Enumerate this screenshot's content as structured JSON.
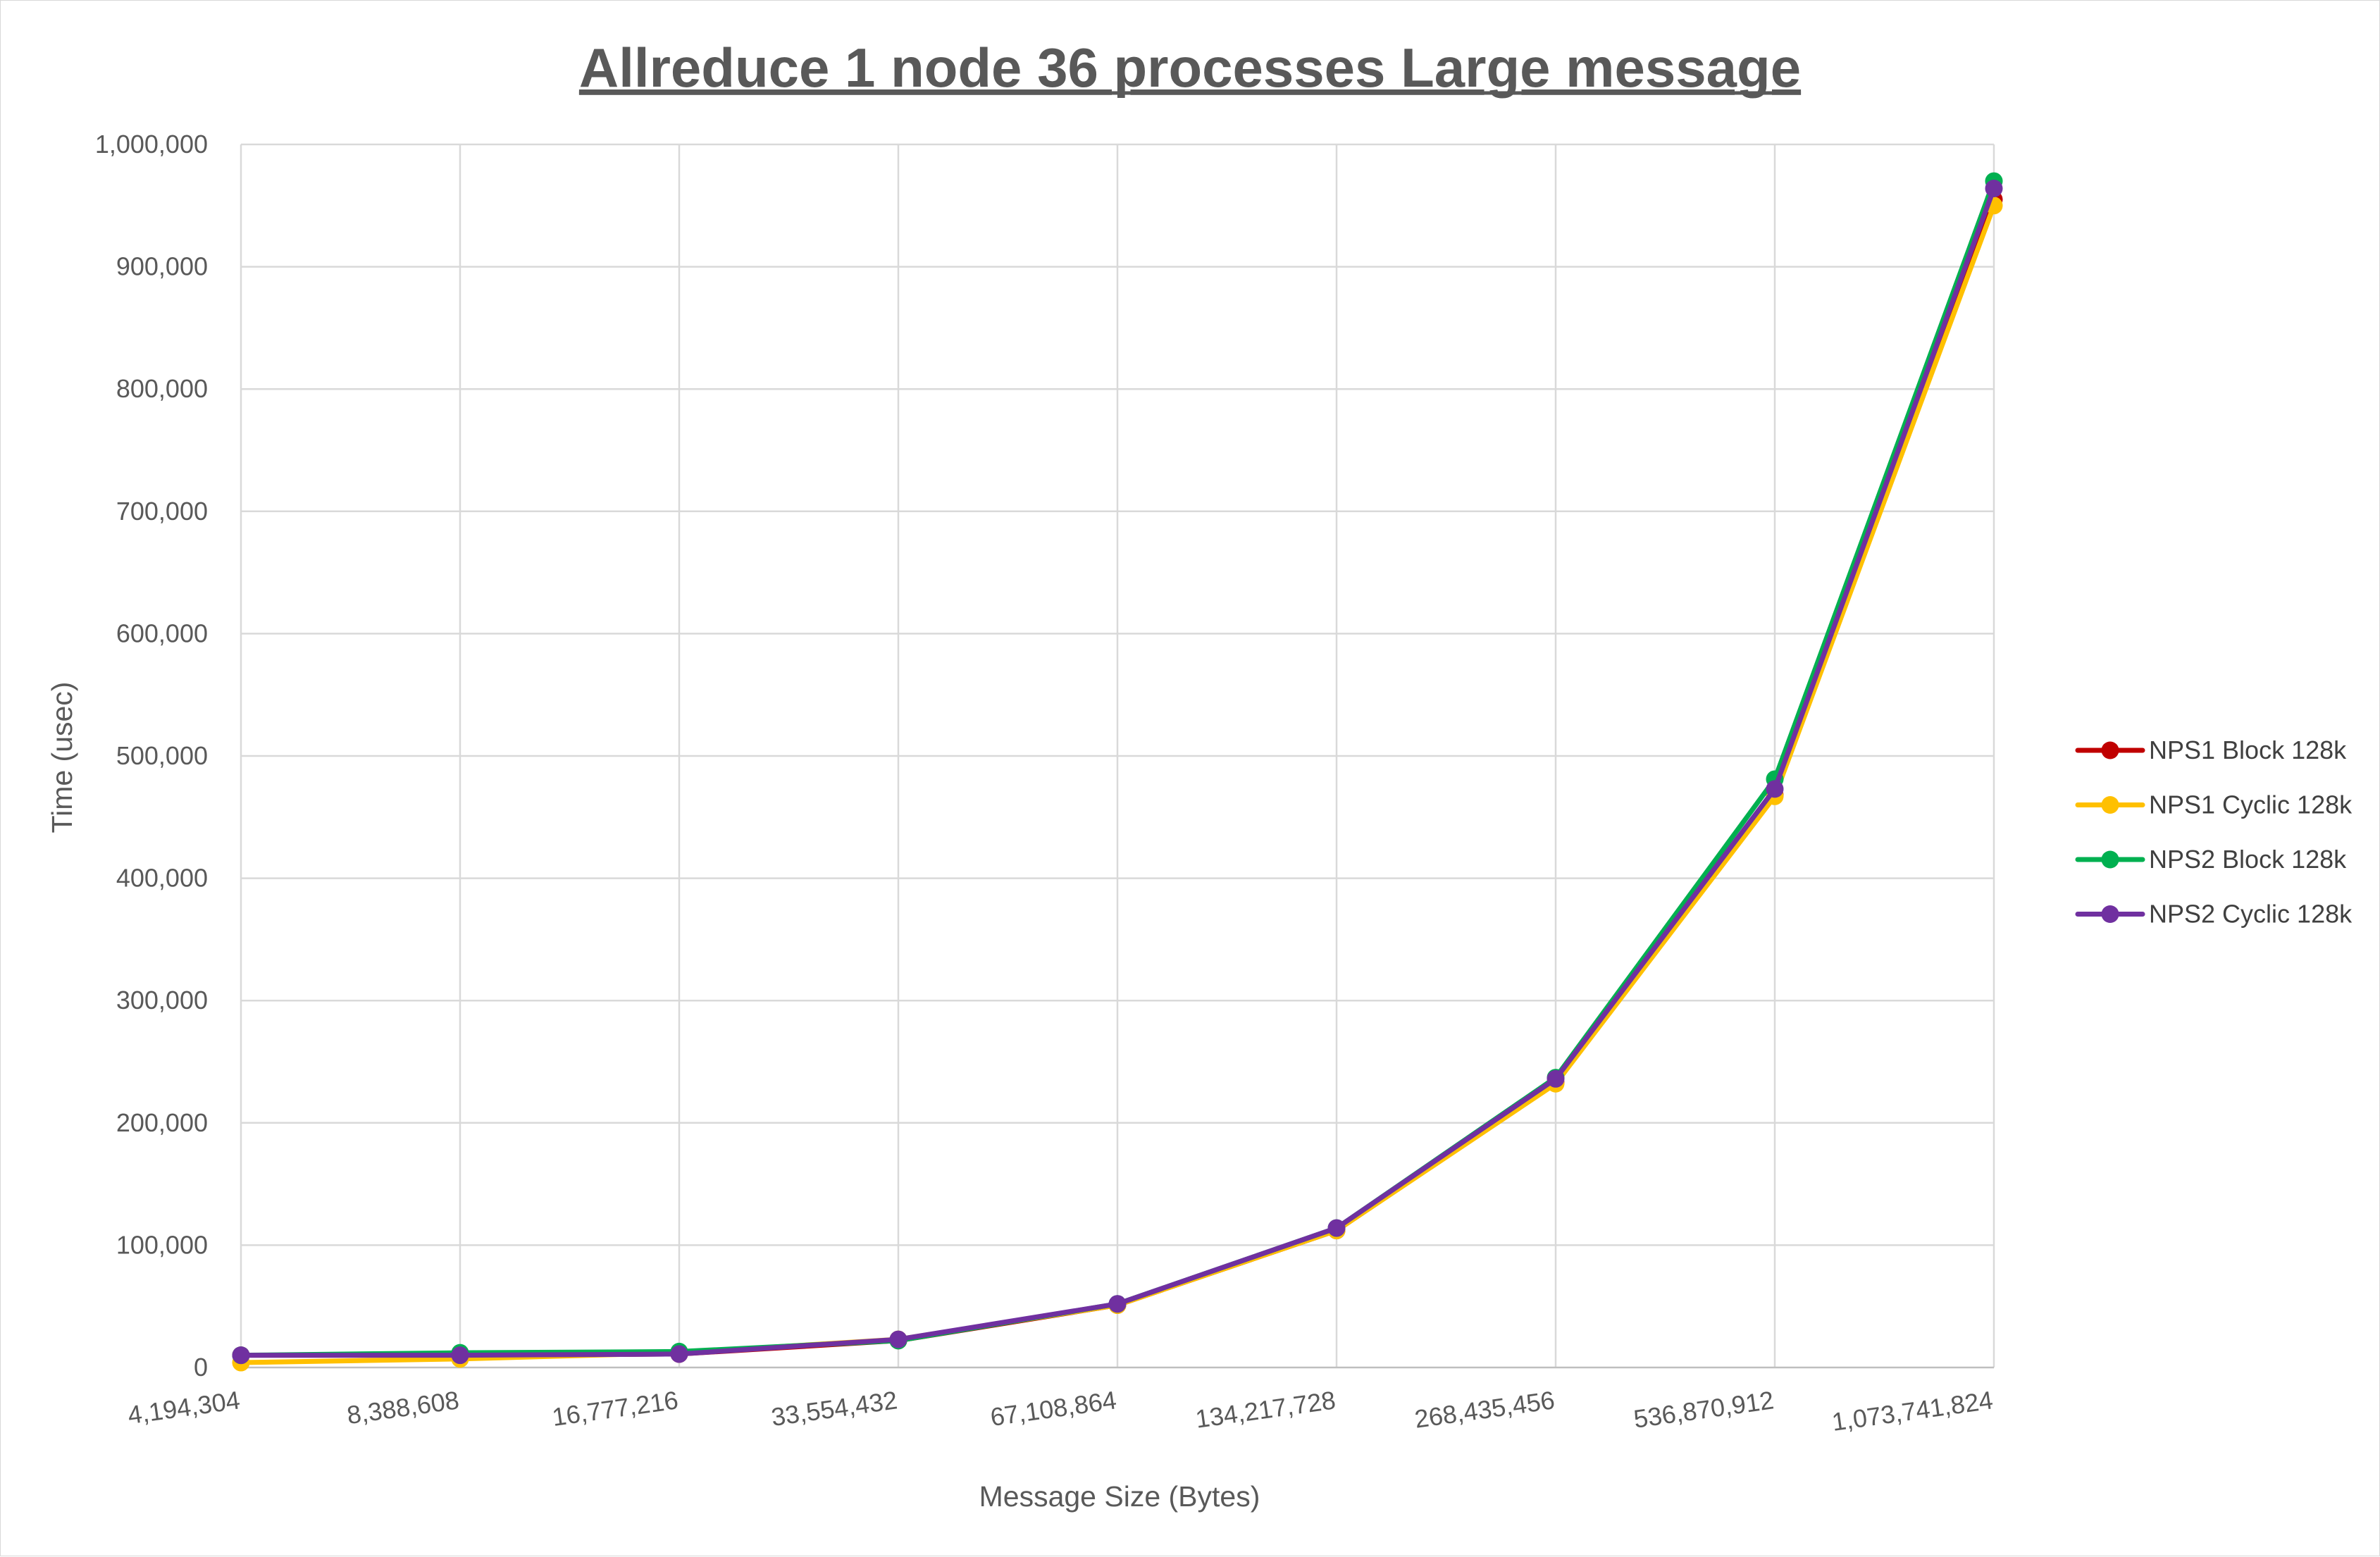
{
  "chart_data": {
    "type": "line",
    "title": "Allreduce 1 node 36 processes Large message",
    "xlabel": "Message Size (Bytes)",
    "ylabel": "Time (usec)",
    "ylim": [
      0,
      1000000
    ],
    "yticks": [
      "0",
      "100,000",
      "200,000",
      "300,000",
      "400,000",
      "500,000",
      "600,000",
      "700,000",
      "800,000",
      "900,000",
      "1,000,000"
    ],
    "categories": [
      "4,194,304",
      "8,388,608",
      "16,777,216",
      "33,554,432",
      "67,108,864",
      "134,217,728",
      "268,435,456",
      "536,870,912",
      "1,073,741,824"
    ],
    "grid": true,
    "legend_position": "right",
    "series": [
      {
        "name": "NPS1 Block 128k",
        "color": "#C00000",
        "values": [
          10000,
          10000,
          11000,
          22000,
          51000,
          112000,
          233000,
          468000,
          955000
        ]
      },
      {
        "name": "NPS1 Cyclic 128k",
        "color": "#FFC000",
        "values": [
          4000,
          7000,
          12000,
          23000,
          51000,
          112000,
          232000,
          467000,
          950000
        ]
      },
      {
        "name": "NPS2 Block 128k",
        "color": "#00B050",
        "values": [
          10000,
          12000,
          13000,
          22000,
          52000,
          114000,
          237000,
          481000,
          970000
        ]
      },
      {
        "name": "NPS2 Cyclic 128k",
        "color": "#7030A0",
        "values": [
          10000,
          10000,
          11000,
          23000,
          52000,
          114000,
          236000,
          473000,
          964000
        ]
      }
    ]
  }
}
